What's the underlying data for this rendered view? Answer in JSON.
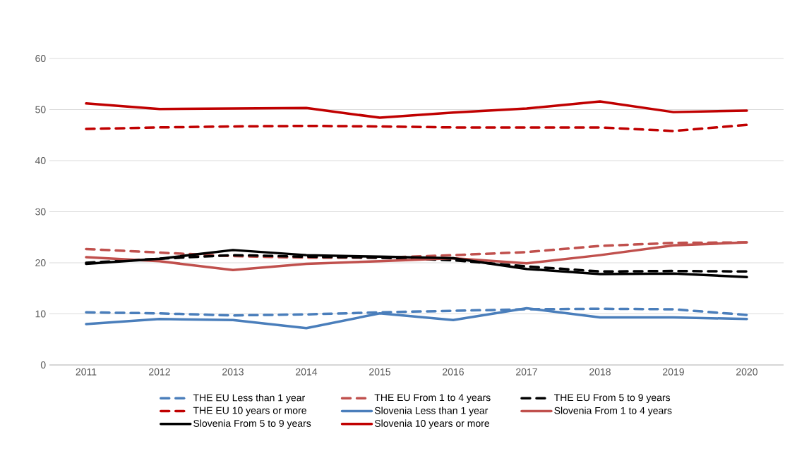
{
  "chart_data": {
    "type": "line",
    "categories": [
      "2011",
      "2012",
      "2013",
      "2014",
      "2015",
      "2016",
      "2017",
      "2018",
      "2019",
      "2020"
    ],
    "ylim": [
      0,
      60
    ],
    "yticks": [
      0,
      10,
      20,
      30,
      40,
      50,
      60
    ],
    "grid": "y",
    "legend": "bottom",
    "marker": "none",
    "series": [
      {
        "name": "THE EU Less than 1 year",
        "color": "#4a7ebb",
        "line_style": "dashed",
        "values": [
          10.3,
          10.1,
          9.7,
          9.9,
          10.3,
          10.6,
          10.9,
          11.0,
          10.9,
          9.8
        ]
      },
      {
        "name": "THE EU From 1 to 4 years",
        "color": "#c0504d",
        "line_style": "dashed",
        "values": [
          22.7,
          22.0,
          21.3,
          21.0,
          21.0,
          21.5,
          22.1,
          23.3,
          23.9,
          24.0
        ]
      },
      {
        "name": "THE EU From 5 to 9 years",
        "color": "#000000",
        "line_style": "dashed",
        "values": [
          20.0,
          20.8,
          21.5,
          21.2,
          21.0,
          20.5,
          19.3,
          18.3,
          18.4,
          18.3
        ]
      },
      {
        "name": "THE EU 10 years or more",
        "color": "#c00000",
        "line_style": "dashed",
        "values": [
          46.2,
          46.5,
          46.7,
          46.8,
          46.7,
          46.5,
          46.5,
          46.5,
          45.8,
          47.0
        ]
      },
      {
        "name": "Slovenia Less than 1 year",
        "color": "#4a7ebb",
        "line_style": "solid",
        "values": [
          8.0,
          9.0,
          8.8,
          7.2,
          10.1,
          8.8,
          11.1,
          9.3,
          9.3,
          9.0
        ]
      },
      {
        "name": "Slovenia From 1 to 4 years",
        "color": "#c0504d",
        "line_style": "solid",
        "values": [
          21.1,
          20.3,
          18.6,
          19.8,
          20.3,
          20.9,
          19.9,
          21.5,
          23.4,
          24.0
        ]
      },
      {
        "name": "Slovenia From 5 to 9 years",
        "color": "#000000",
        "line_style": "solid",
        "values": [
          19.8,
          20.8,
          22.5,
          21.5,
          21.2,
          20.9,
          18.8,
          17.8,
          17.9,
          17.2
        ]
      },
      {
        "name": "Slovenia 10 years or more",
        "color": "#c00000",
        "line_style": "solid",
        "values": [
          51.2,
          50.1,
          50.2,
          50.3,
          48.4,
          49.4,
          50.2,
          51.6,
          49.5,
          49.8
        ]
      }
    ]
  }
}
